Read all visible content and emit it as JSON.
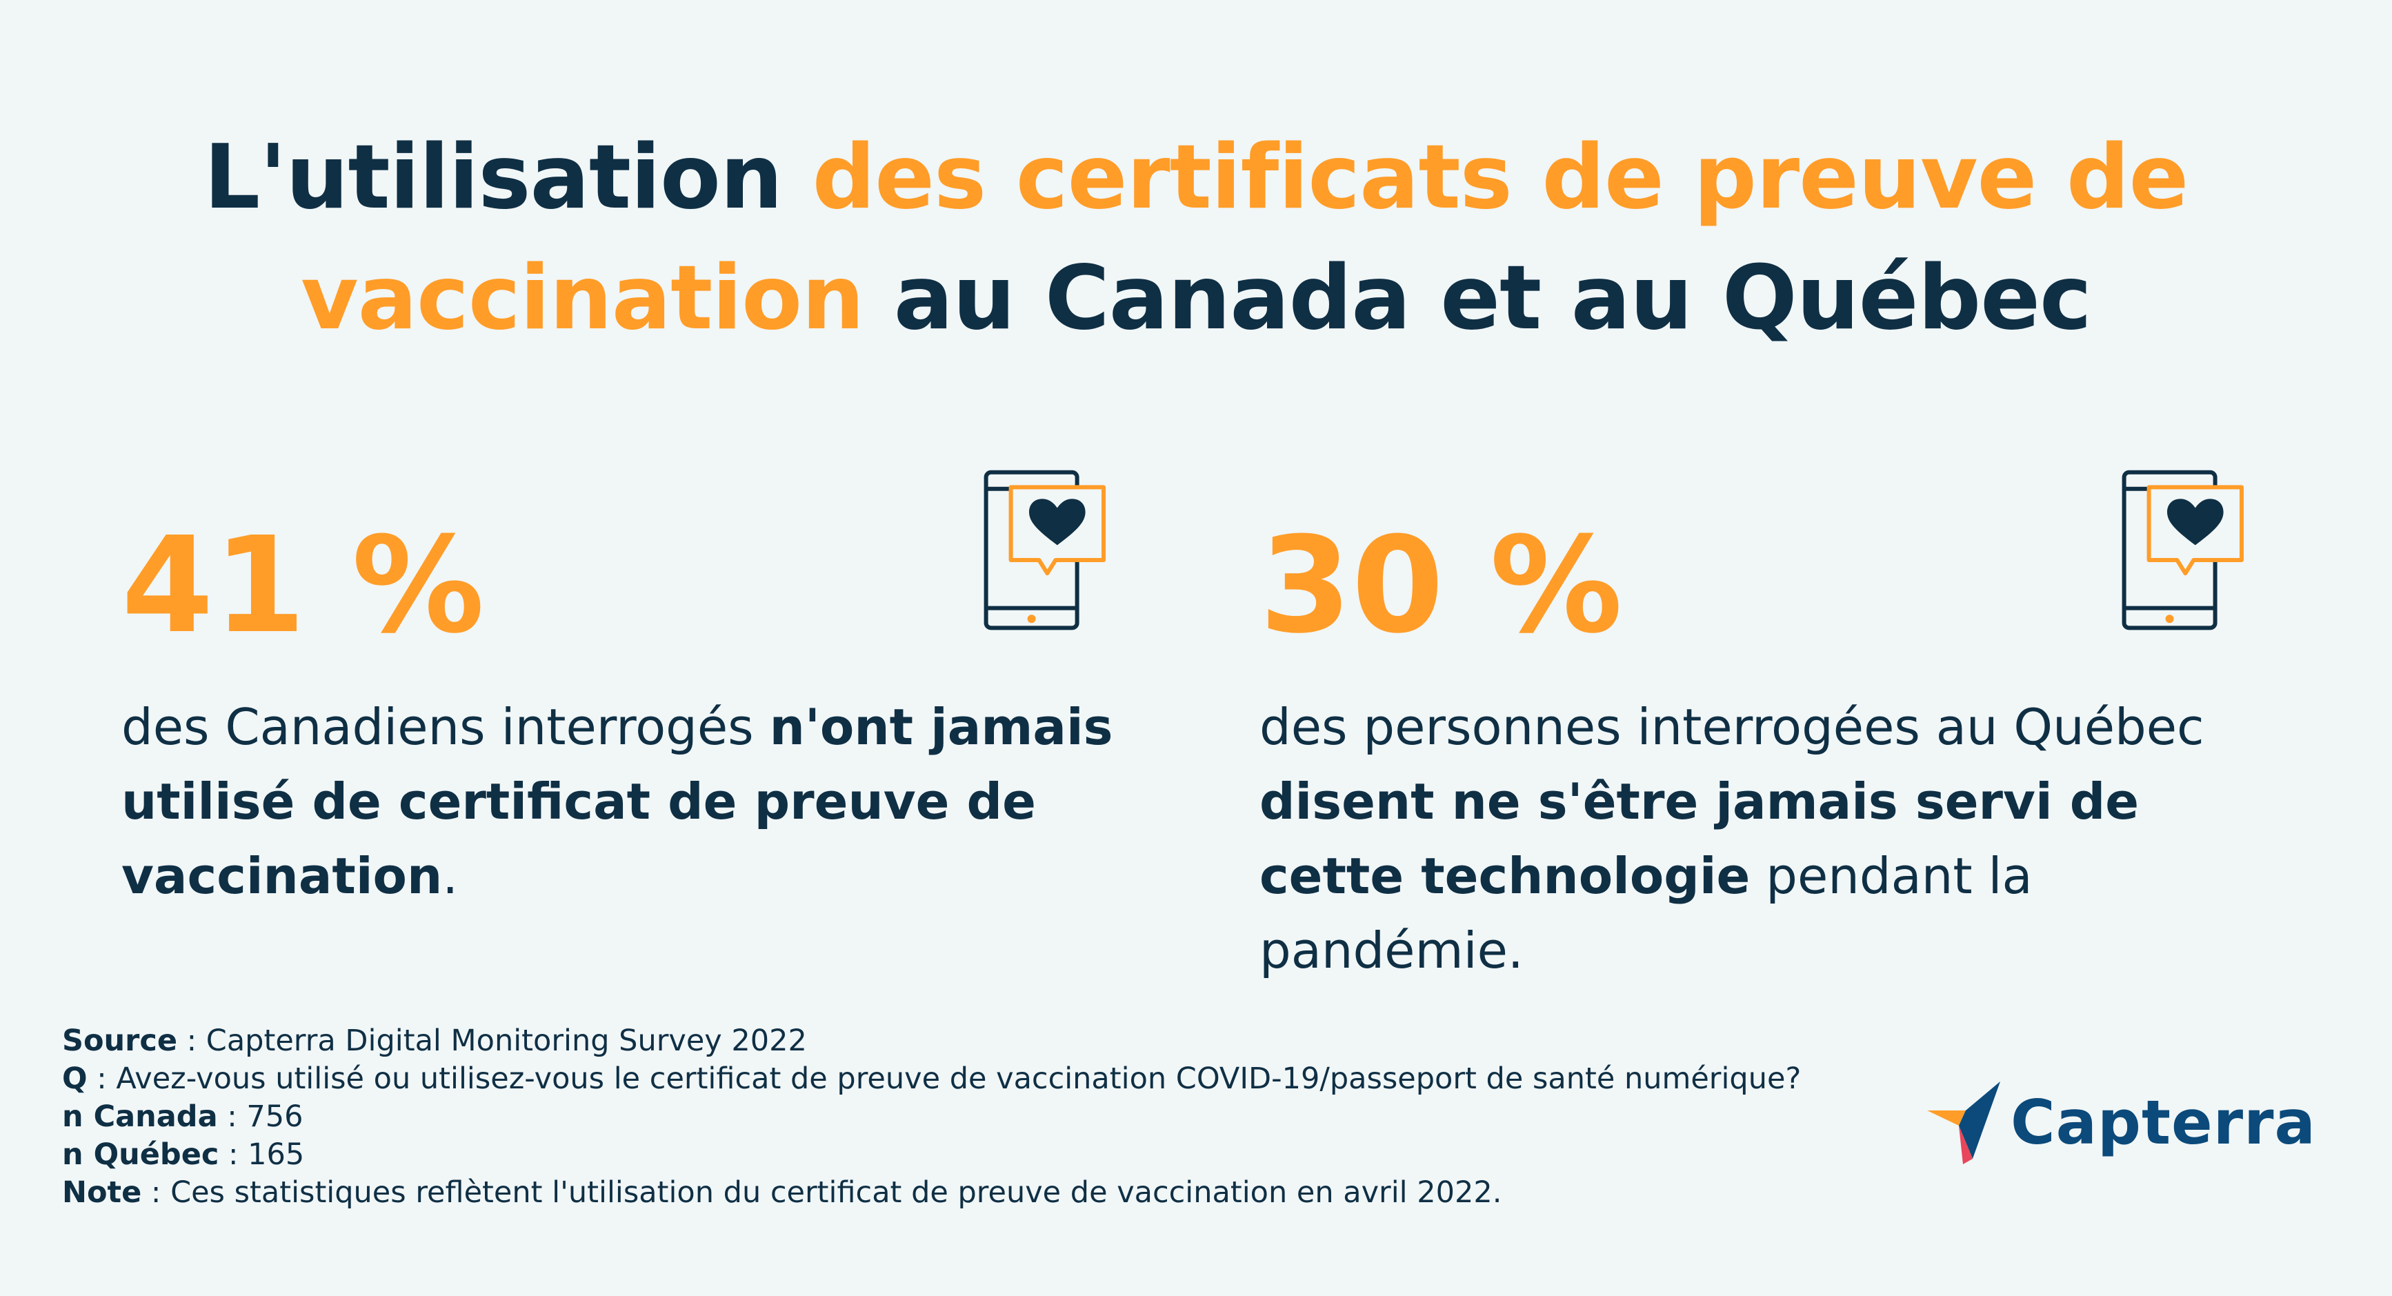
{
  "title": {
    "part1": "L'utilisation ",
    "part2": "des certificats de preuve de vaccination",
    "part3": " au Canada et au Québec"
  },
  "stats": [
    {
      "value": "41 %",
      "text_pre": "des Canadiens interrogés ",
      "text_bold": "n'ont jamais utilisé de certificat de preuve de vaccination",
      "text_post": "."
    },
    {
      "value": "30 %",
      "text_pre": "des personnes interrogées au Québec ",
      "text_bold": "disent ne s'être jamais servi de cette technologie",
      "text_post": " pendant la pandémie."
    }
  ],
  "footer": {
    "source_label": "Source",
    "source_value": " : Capterra Digital Monitoring Survey 2022",
    "q_label": "Q",
    "q_value": " : Avez-vous utilisé ou utilisez-vous le certificat de preuve de vaccination COVID-19/passeport de santé numérique?",
    "n_canada_label": "n Canada",
    "n_canada_value": " : 756",
    "n_quebec_label": "n Québec",
    "n_quebec_value": " : 165",
    "note_label": "Note",
    "note_value": " : Ces statistiques reflètent l'utilisation du certificat de preuve de vaccination en avril 2022."
  },
  "logo": {
    "name": "Capterra"
  },
  "icons": {
    "phone": "phone-heart-icon",
    "logo": "capterra-logo-icon"
  },
  "colors": {
    "background": "#f1f6f7",
    "navy": "#0f2f44",
    "orange": "#ff9d28",
    "logo_blue": "#0b4a7a"
  }
}
